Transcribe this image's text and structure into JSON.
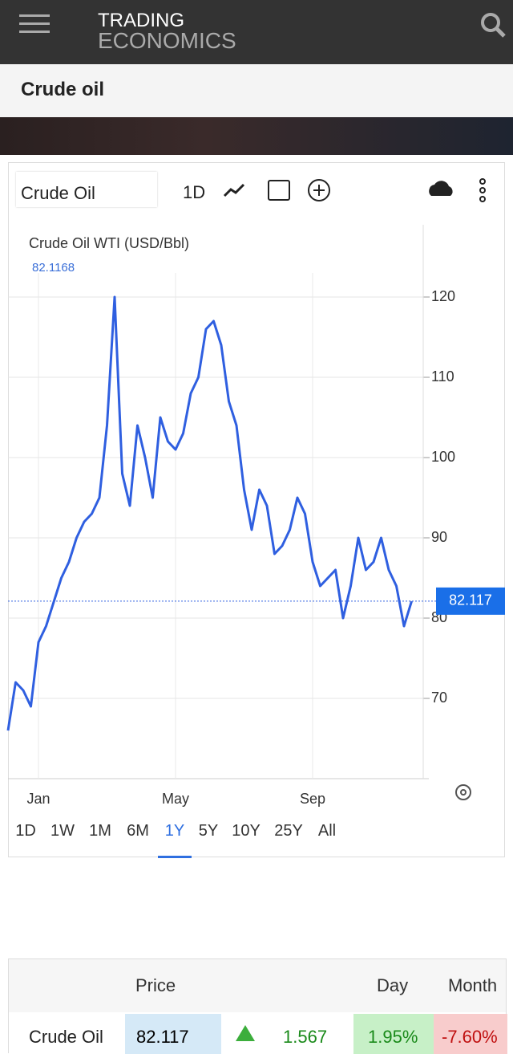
{
  "header": {
    "logo_top": "TRADING",
    "logo_bottom": "ECONOMICS"
  },
  "page_title": "Crude oil",
  "toolbar": {
    "symbol": "Crude Oil",
    "interval": "1D"
  },
  "chart_data": {
    "type": "line",
    "title": "Crude Oil WTI (USD/Bbl)",
    "subtitle": "82.1168",
    "categories": [
      null,
      null,
      null,
      null,
      "Jan",
      null,
      null,
      null,
      null,
      null,
      null,
      null,
      null,
      null,
      null,
      null,
      null,
      null,
      null,
      null,
      null,
      null,
      "May",
      null,
      null,
      null,
      null,
      null,
      null,
      null,
      null,
      null,
      null,
      null,
      null,
      null,
      null,
      null,
      null,
      null,
      "Sep",
      null,
      null,
      null,
      null,
      null,
      null,
      null,
      null,
      null,
      null,
      null,
      null,
      null
    ],
    "series": [
      {
        "name": "Crude Oil",
        "color": "#2f5fe0",
        "values": [
          66,
          72,
          71,
          69,
          77,
          79,
          82,
          85,
          87,
          90,
          92,
          93,
          95,
          104,
          120,
          98,
          94,
          104,
          100,
          95,
          105,
          102,
          101,
          103,
          108,
          110,
          116,
          117,
          114,
          107,
          104,
          96,
          91,
          96,
          94,
          88,
          89,
          91,
          95,
          93,
          87,
          84,
          85,
          86,
          80,
          84,
          90,
          86,
          87,
          90,
          86,
          84,
          79,
          82.1
        ]
      }
    ],
    "last_value": 82.117,
    "ylim": [
      60,
      129
    ],
    "yticks": [
      70,
      80,
      90,
      100,
      110,
      120
    ],
    "grid": true
  },
  "ranges": {
    "items": [
      "1D",
      "1W",
      "1M",
      "6M",
      "1Y",
      "5Y",
      "10Y",
      "25Y",
      "All"
    ],
    "selected": 4
  },
  "table": {
    "headers": {
      "price": "Price",
      "day": "Day",
      "month": "Month"
    },
    "row": {
      "name": "Crude Oil",
      "price": "82.117",
      "change": "1.567",
      "day": "1.95%",
      "month": "-7.60%"
    }
  }
}
